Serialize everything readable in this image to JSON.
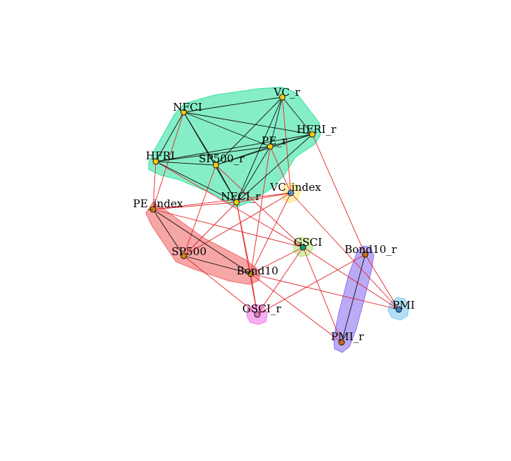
{
  "groups": [
    {
      "id": "g1",
      "color": "#35e3a0",
      "members": [
        "NFCI",
        "VC_r",
        "HFRI_r",
        "PE_r",
        "SP500_r",
        "HFRI",
        "NFCI_r"
      ]
    },
    {
      "id": "g2",
      "color": "#f26b6b",
      "members": [
        "PE_index",
        "SP500",
        "Bond10"
      ]
    },
    {
      "id": "g3",
      "color": "#ffe27a",
      "members": [
        "VC_index"
      ]
    },
    {
      "id": "g4",
      "color": "#b7e87a",
      "members": [
        "GSCI"
      ]
    },
    {
      "id": "g5",
      "color": "#8e72ee",
      "members": [
        "Bond10_r",
        "PMI_r"
      ]
    },
    {
      "id": "g6",
      "color": "#7ec8f2",
      "members": [
        "PMI"
      ]
    },
    {
      "id": "g7",
      "color": "#ee7ae6",
      "members": [
        "GSCI_r"
      ]
    }
  ],
  "nodes": [
    {
      "id": "NFCI",
      "label": "NFCI",
      "fill": "#f5c518"
    },
    {
      "id": "VC_r",
      "label": "VC_r",
      "fill": "#f5c518"
    },
    {
      "id": "HFRI_r",
      "label": "HFRI_r",
      "fill": "#f5c518"
    },
    {
      "id": "PE_r",
      "label": "PE_r",
      "fill": "#f5c518"
    },
    {
      "id": "SP500_r",
      "label": "SP500_r",
      "fill": "#f5c518"
    },
    {
      "id": "HFRI",
      "label": "HFRI",
      "fill": "#f5c518"
    },
    {
      "id": "NFCI_r",
      "label": "NFCI_r",
      "fill": "#f5c518"
    },
    {
      "id": "VC_index",
      "label": "VC_index",
      "fill": "#5f9bd6"
    },
    {
      "id": "PE_index",
      "label": "PE_index",
      "fill": "#c98a1a"
    },
    {
      "id": "SP500",
      "label": "SP500",
      "fill": "#c98a1a"
    },
    {
      "id": "Bond10",
      "label": "Bond10",
      "fill": "#c98a1a"
    },
    {
      "id": "GSCI",
      "label": "GSCI",
      "fill": "#1f9a74"
    },
    {
      "id": "Bond10_r",
      "label": "Bond10_r",
      "fill": "#c96a1a"
    },
    {
      "id": "PMI_r",
      "label": "PMI_r",
      "fill": "#c96a1a"
    },
    {
      "id": "PMI",
      "label": "PMI",
      "fill": "#3f7fc4"
    },
    {
      "id": "GSCI_r",
      "label": "GSCI_r",
      "fill": "#d97ab8"
    }
  ],
  "edges_black": [
    [
      "NFCI",
      "VC_r"
    ],
    [
      "NFCI",
      "HFRI_r"
    ],
    [
      "NFCI",
      "PE_r"
    ],
    [
      "NFCI",
      "SP500_r"
    ],
    [
      "NFCI",
      "HFRI"
    ],
    [
      "NFCI",
      "NFCI_r"
    ],
    [
      "VC_r",
      "PE_r"
    ],
    [
      "VC_r",
      "SP500_r"
    ],
    [
      "VC_r",
      "NFCI_r"
    ],
    [
      "VC_r",
      "HFRI_r"
    ],
    [
      "HFRI_r",
      "PE_r"
    ],
    [
      "HFRI_r",
      "SP500_r"
    ],
    [
      "HFRI_r",
      "HFRI"
    ],
    [
      "HFRI_r",
      "NFCI_r"
    ],
    [
      "PE_r",
      "SP500_r"
    ],
    [
      "PE_r",
      "HFRI"
    ],
    [
      "PE_r",
      "NFCI_r"
    ],
    [
      "SP500_r",
      "HFRI"
    ],
    [
      "SP500_r",
      "NFCI_r"
    ],
    [
      "HFRI",
      "NFCI_r"
    ],
    [
      "PE_index",
      "SP500"
    ],
    [
      "PE_index",
      "Bond10"
    ],
    [
      "SP500",
      "Bond10"
    ],
    [
      "Bond10_r",
      "PMI_r"
    ]
  ],
  "edges_red": [
    [
      "VC_r",
      "VC_index"
    ],
    [
      "HFRI_r",
      "Bond10_r"
    ],
    [
      "PE_r",
      "VC_index"
    ],
    [
      "SP500_r",
      "SP500"
    ],
    [
      "SP500_r",
      "GSCI"
    ],
    [
      "NFCI",
      "PE_index"
    ],
    [
      "HFRI",
      "GSCI"
    ],
    [
      "HFRI",
      "PE_index"
    ],
    [
      "NFCI_r",
      "PE_index"
    ],
    [
      "NFCI_r",
      "Bond10"
    ],
    [
      "NFCI_r",
      "VC_index"
    ],
    [
      "NFCI_r",
      "SP500"
    ],
    [
      "NFCI_r",
      "GSCI_r"
    ],
    [
      "VC_index",
      "PE_index"
    ],
    [
      "VC_index",
      "SP500"
    ],
    [
      "VC_index",
      "PMI"
    ],
    [
      "VC_index",
      "Bond10"
    ],
    [
      "PE_index",
      "GSCI"
    ],
    [
      "GSCI",
      "PMI_r"
    ],
    [
      "GSCI",
      "Bond10"
    ],
    [
      "GSCI",
      "GSCI_r"
    ],
    [
      "GSCI",
      "PMI"
    ],
    [
      "SP500",
      "GSCI_r"
    ],
    [
      "Bond10",
      "PMI"
    ],
    [
      "Bond10",
      "PMI_r"
    ],
    [
      "Bond10",
      "GSCI_r"
    ],
    [
      "Bond10_r",
      "PMI"
    ],
    [
      "Bond10_r",
      "GSCI_r"
    ],
    [
      "PE_r",
      "Bond10"
    ]
  ]
}
